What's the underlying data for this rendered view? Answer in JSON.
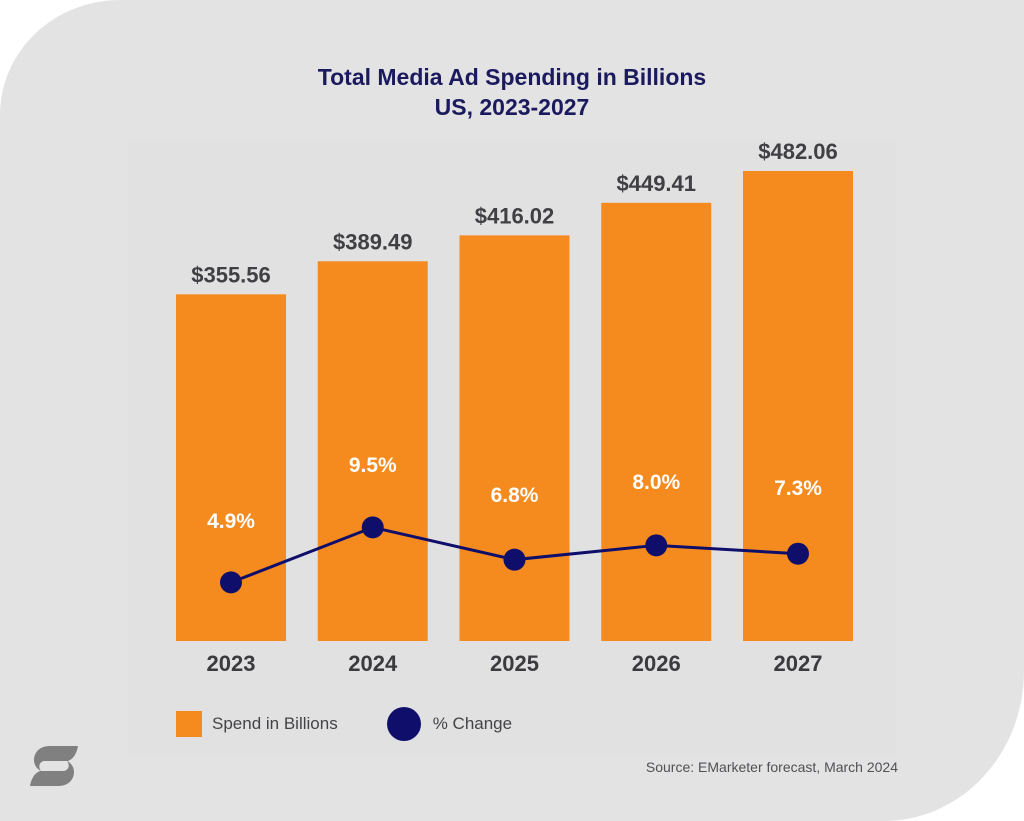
{
  "title": {
    "line1": "Total Media Ad Spending in Billions",
    "line2": "US, 2023-2027"
  },
  "chart_data": {
    "type": "bar",
    "title": "Total Media Ad Spending in Billions",
    "subtitle": "US, 2023-2027",
    "categories": [
      "2023",
      "2024",
      "2025",
      "2026",
      "2027"
    ],
    "series": [
      {
        "name": "Spend in Billions",
        "type": "bar",
        "color": "#f58b1f",
        "values": [
          355.56,
          389.49,
          416.02,
          449.41,
          482.06
        ],
        "labels": [
          "$355.56",
          "$389.49",
          "$416.02",
          "$449.41",
          "$482.06"
        ]
      },
      {
        "name": "% Change",
        "type": "line",
        "color": "#0f0f6b",
        "values": [
          4.9,
          9.5,
          6.8,
          8.0,
          7.3
        ],
        "labels": [
          "4.9%",
          "9.5%",
          "6.8%",
          "8.0%",
          "7.3%"
        ]
      }
    ],
    "xlabel": "",
    "ylabel": "",
    "ylim": [
      0,
      482.06
    ],
    "y2lim": [
      0,
      40
    ],
    "grid": false,
    "legend": "bottom-left"
  },
  "legend": {
    "bar_label": "Spend in Billions",
    "line_label": "% Change"
  },
  "source": "Source: EMarketer forecast, March 2024",
  "logo": "brand-s-logo-icon"
}
